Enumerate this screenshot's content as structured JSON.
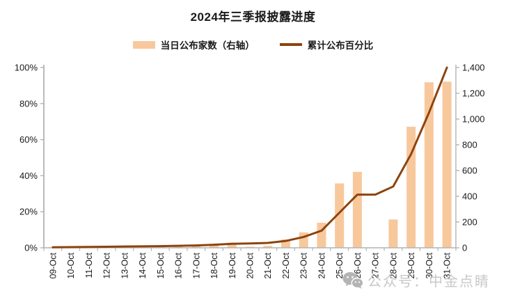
{
  "chart_data": {
    "type": "bar",
    "title": "2024年三季报披露进度",
    "categories": [
      "09-Oct",
      "10-Oct",
      "11-Oct",
      "12-Oct",
      "13-Oct",
      "14-Oct",
      "15-Oct",
      "16-Oct",
      "17-Oct",
      "18-Oct",
      "19-Oct",
      "20-Oct",
      "21-Oct",
      "22-Oct",
      "23-Oct",
      "24-Oct",
      "25-Oct",
      "26-Oct",
      "27-Oct",
      "28-Oct",
      "29-Oct",
      "30-Oct",
      "31-Oct"
    ],
    "series": [
      {
        "name": "当日公布家数（右轴）",
        "type": "bar",
        "axis": "right",
        "values": [
          5,
          5,
          5,
          5,
          8,
          10,
          10,
          12,
          15,
          22,
          40,
          8,
          15,
          65,
          120,
          195,
          500,
          590,
          0,
          220,
          940,
          1285,
          1290
        ]
      },
      {
        "name": "累计公布百分比",
        "type": "line",
        "axis": "left",
        "values": [
          0.3,
          0.4,
          0.5,
          0.6,
          0.7,
          0.8,
          0.9,
          1.1,
          1.3,
          1.7,
          2.2,
          2.4,
          2.7,
          3.8,
          6.0,
          9.5,
          19.5,
          29.5,
          29.5,
          34,
          52,
          75,
          100
        ]
      }
    ],
    "left_axis": {
      "min": 0,
      "max": 100,
      "ticks": [
        "0%",
        "20%",
        "40%",
        "60%",
        "80%",
        "100%"
      ],
      "tick_values": [
        0,
        20,
        40,
        60,
        80,
        100
      ]
    },
    "right_axis": {
      "min": 0,
      "max": 1400,
      "ticks": [
        "0",
        "200",
        "400",
        "600",
        "800",
        "1,000",
        "1,200",
        "1,400"
      ],
      "tick_values": [
        0,
        200,
        400,
        600,
        800,
        1000,
        1200,
        1400
      ]
    },
    "grid": false,
    "legend_position": "top",
    "x_label_rotation": -90
  },
  "colors": {
    "bar": "#F8C89D",
    "line": "#8E430D",
    "axis": "#b3b3b3",
    "text": "#1a1a1a",
    "watermark": "#c8c8c8",
    "watermark_icon": "#b4b4b4",
    "background": "#ffffff"
  },
  "watermark": {
    "text": "公众号：中金点睛"
  }
}
